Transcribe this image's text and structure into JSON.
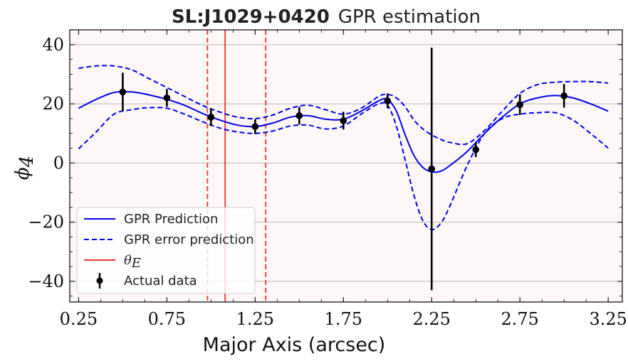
{
  "chart_data": {
    "type": "line",
    "title_bold": "SL:J1029+0420",
    "title_rest": "GPR estimation",
    "xlabel": "Major Axis (arcsec)",
    "ylabel_symbol": "ϕ",
    "ylabel_sub": "4",
    "xlim": [
      0.2,
      3.33
    ],
    "ylim": [
      -47,
      45
    ],
    "xticks": [
      0.25,
      0.75,
      1.25,
      1.75,
      2.25,
      2.75,
      3.25
    ],
    "xtick_labels": [
      "0.25",
      "0.75",
      "1.25",
      "1.75",
      "2.25",
      "2.75",
      "3.25"
    ],
    "yticks": [
      -40,
      -20,
      0,
      20,
      40
    ],
    "ytick_labels": [
      "−40",
      "−20",
      "0",
      "20",
      "40"
    ],
    "background": "#fdf8f7",
    "grid": "horizontal",
    "legend_position": "bottom-left",
    "colors": {
      "prediction": "#0000ee",
      "error": "#0000ee",
      "theta": "#ee3333",
      "data": "#000000"
    },
    "theta_e": {
      "value": 1.08,
      "lower": 0.98,
      "upper": 1.31
    },
    "series": [
      {
        "name": "GPR Prediction",
        "style": "solid",
        "x": [
          0.25,
          0.35,
          0.45,
          0.55,
          0.65,
          0.75,
          0.85,
          0.95,
          1.05,
          1.15,
          1.25,
          1.35,
          1.45,
          1.55,
          1.65,
          1.75,
          1.85,
          1.95,
          2.0,
          2.05,
          2.1,
          2.15,
          2.2,
          2.25,
          2.3,
          2.35,
          2.45,
          2.55,
          2.65,
          2.75,
          2.85,
          2.95,
          3.05,
          3.15,
          3.25
        ],
        "y": [
          18.5,
          21.5,
          23.8,
          24.0,
          23.0,
          21.5,
          19.5,
          16.8,
          14.5,
          12.8,
          12.3,
          13.5,
          15.5,
          16.0,
          14.8,
          14.8,
          17.5,
          21.0,
          21.5,
          17.5,
          9.5,
          2.5,
          -1.5,
          -3.0,
          -2.8,
          -1.0,
          3.8,
          10.0,
          15.5,
          20.0,
          22.0,
          22.8,
          22.0,
          20.0,
          17.5
        ]
      },
      {
        "name": "GPR error prediction",
        "style": "dashed",
        "x": [
          0.25,
          0.35,
          0.45,
          0.55,
          0.65,
          0.75,
          0.85,
          0.95,
          1.05,
          1.15,
          1.25,
          1.35,
          1.45,
          1.55,
          1.65,
          1.75,
          1.85,
          1.95,
          2.0,
          2.05,
          2.1,
          2.15,
          2.2,
          2.25,
          2.3,
          2.35,
          2.45,
          2.55,
          2.65,
          2.75,
          2.85,
          2.95,
          3.05,
          3.15,
          3.25
        ],
        "y": [
          32.0,
          32.8,
          32.8,
          31.5,
          28.5,
          25.5,
          22.5,
          19.5,
          17.2,
          15.5,
          15.0,
          16.2,
          18.5,
          19.5,
          18.0,
          16.5,
          18.5,
          22.5,
          23.2,
          22.0,
          19.0,
          14.5,
          11.5,
          9.5,
          8.0,
          7.0,
          6.5,
          11.0,
          17.5,
          23.5,
          26.5,
          27.3,
          27.5,
          27.5,
          27.0
        ]
      },
      {
        "name": "",
        "style": "dashed",
        "x": [
          0.25,
          0.35,
          0.45,
          0.55,
          0.65,
          0.75,
          0.85,
          0.95,
          1.05,
          1.15,
          1.25,
          1.35,
          1.45,
          1.55,
          1.65,
          1.75,
          1.85,
          1.95,
          2.0,
          2.05,
          2.1,
          2.15,
          2.2,
          2.25,
          2.3,
          2.35,
          2.45,
          2.55,
          2.65,
          2.75,
          2.85,
          2.95,
          3.05,
          3.15,
          3.25
        ],
        "y": [
          4.8,
          10.5,
          16.5,
          18.0,
          18.7,
          18.5,
          16.5,
          14.0,
          11.8,
          10.5,
          10.0,
          10.8,
          12.5,
          12.8,
          11.5,
          12.5,
          16.5,
          20.0,
          19.5,
          12.5,
          1.0,
          -11.0,
          -19.5,
          -22.5,
          -20.5,
          -15.0,
          -1.0,
          10.0,
          15.0,
          16.5,
          17.0,
          17.0,
          14.5,
          10.0,
          5.0
        ]
      }
    ],
    "data_points": {
      "name": "Actual data",
      "x": [
        0.5,
        0.75,
        1.0,
        1.25,
        1.5,
        1.75,
        2.0,
        2.25,
        2.5,
        2.75,
        3.0
      ],
      "y": [
        24.0,
        22.0,
        15.5,
        12.3,
        16.0,
        14.3,
        21.0,
        -2.0,
        4.5,
        19.7,
        22.7
      ],
      "err": [
        6.5,
        3.0,
        3.0,
        2.5,
        3.0,
        3.0,
        2.5,
        41.0,
        2.5,
        3.5,
        4.0
      ]
    },
    "legend": {
      "prediction": "GPR Prediction",
      "error": "GPR error prediction",
      "theta_symbol": "θ",
      "theta_sub": "E",
      "data": "Actual data"
    }
  }
}
